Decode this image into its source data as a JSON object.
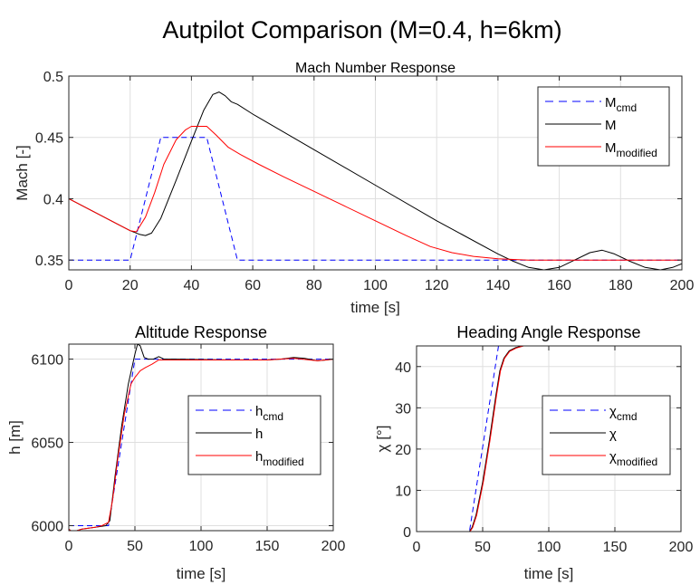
{
  "title": "Autpilot Comparison (M=0.4, h=6km)",
  "chart_data": [
    {
      "type": "line",
      "title": "Mach Number Response",
      "xlabel": "time [s]",
      "ylabel": "Mach [-]",
      "xlim": [
        0,
        200
      ],
      "ylim": [
        0.342,
        0.5
      ],
      "xticks": [
        0,
        20,
        40,
        60,
        80,
        100,
        120,
        140,
        160,
        180,
        200
      ],
      "yticks": [
        0.35,
        0.4,
        0.45,
        0.5
      ],
      "grid": true,
      "legend": "top-right",
      "series": [
        {
          "name": "M",
          "sub": "cmd",
          "color": "#0000ff",
          "dash": true,
          "x": [
            0,
            20,
            30,
            45,
            55,
            200
          ],
          "y": [
            0.35,
            0.35,
            0.45,
            0.45,
            0.35,
            0.35
          ]
        },
        {
          "name": "M",
          "sub": "",
          "color": "#000000",
          "dash": false,
          "x": [
            0,
            10,
            20,
            23,
            25,
            27,
            30,
            35,
            40,
            44,
            47,
            49,
            51,
            53,
            55,
            60,
            80,
            100,
            120,
            140,
            145,
            150,
            155,
            160,
            165,
            170,
            174,
            178,
            183,
            188,
            193,
            197,
            200
          ],
          "y": [
            0.4,
            0.387,
            0.374,
            0.371,
            0.37,
            0.372,
            0.384,
            0.415,
            0.447,
            0.472,
            0.485,
            0.487,
            0.484,
            0.479,
            0.477,
            0.469,
            0.44,
            0.411,
            0.382,
            0.355,
            0.349,
            0.344,
            0.342,
            0.344,
            0.35,
            0.356,
            0.358,
            0.355,
            0.349,
            0.344,
            0.342,
            0.344,
            0.347
          ]
        },
        {
          "name": "M",
          "sub": "modified",
          "color": "#ff0000",
          "dash": false,
          "x": [
            0,
            10,
            20,
            22,
            25,
            28,
            31,
            35,
            38,
            40,
            45,
            48,
            52,
            56,
            62,
            70,
            80,
            90,
            100,
            110,
            118,
            125,
            132,
            140,
            150,
            200
          ],
          "y": [
            0.4,
            0.387,
            0.374,
            0.373,
            0.385,
            0.405,
            0.428,
            0.448,
            0.456,
            0.459,
            0.459,
            0.452,
            0.442,
            0.436,
            0.428,
            0.418,
            0.406,
            0.394,
            0.382,
            0.37,
            0.361,
            0.356,
            0.353,
            0.351,
            0.35,
            0.35
          ]
        }
      ]
    },
    {
      "type": "line",
      "title": "Altitude Response",
      "xlabel": "time [s]",
      "ylabel": "h [m]",
      "xlim": [
        0,
        200
      ],
      "ylim": [
        5997,
        6109
      ],
      "xticks": [
        0,
        50,
        100,
        150,
        200
      ],
      "yticks": [
        6000,
        6050,
        6100
      ],
      "grid": true,
      "legend": "right",
      "series": [
        {
          "name": "h",
          "sub": "cmd",
          "color": "#0000ff",
          "dash": true,
          "x": [
            0,
            30,
            50,
            200
          ],
          "y": [
            6000,
            6000,
            6100,
            6100
          ]
        },
        {
          "name": "h",
          "sub": "",
          "color": "#000000",
          "dash": false,
          "x": [
            0,
            3,
            6,
            10,
            20,
            28,
            31,
            35,
            40,
            45,
            50,
            52,
            54,
            57,
            60,
            64,
            68,
            72,
            80,
            120,
            150,
            160,
            170,
            178,
            188,
            195,
            200
          ],
          "y": [
            5998,
            5996,
            5997,
            5998,
            5999,
            6000,
            6003,
            6030,
            6060,
            6085,
            6103,
            6109,
            6108,
            6101,
            6100,
            6100,
            6101.5,
            6100,
            6100,
            6099.5,
            6099.5,
            6100,
            6101,
            6100.5,
            6099,
            6099.5,
            6100
          ]
        },
        {
          "name": "h",
          "sub": "modified",
          "color": "#ff0000",
          "dash": false,
          "x": [
            0,
            3,
            6,
            10,
            20,
            25,
            30,
            33,
            37,
            42,
            47,
            50,
            54,
            58,
            63,
            68,
            72,
            80,
            120,
            150,
            170,
            188,
            200
          ],
          "y": [
            5998,
            5996,
            5997,
            5998,
            5999,
            6000,
            6002,
            6015,
            6040,
            6067,
            6085,
            6089,
            6093,
            6095,
            6097,
            6099.5,
            6099.5,
            6099.5,
            6099.5,
            6099.5,
            6100.5,
            6099,
            6100
          ]
        }
      ]
    },
    {
      "type": "line",
      "title": "Heading Angle Response",
      "xlabel": "time [s]",
      "ylabel": "χ [°]",
      "xlim": [
        0,
        200
      ],
      "ylim": [
        0,
        45
      ],
      "xticks": [
        0,
        50,
        100,
        150,
        200
      ],
      "yticks": [
        0,
        10,
        20,
        30,
        40
      ],
      "grid": true,
      "legend": "right",
      "series": [
        {
          "name": "χ",
          "sub": "cmd",
          "color": "#0000ff",
          "dash": true,
          "x": [
            0,
            40,
            62,
            200
          ],
          "y": [
            0,
            0,
            45,
            45
          ]
        },
        {
          "name": "χ",
          "sub": "",
          "color": "#000000",
          "dash": false,
          "x": [
            0,
            40,
            42,
            45,
            50,
            55,
            60,
            63,
            66,
            70,
            75,
            80,
            90,
            200
          ],
          "y": [
            0,
            0,
            1,
            4,
            12,
            22,
            33,
            39,
            42,
            43.8,
            44.6,
            45,
            45,
            45
          ]
        },
        {
          "name": "χ",
          "sub": "modified",
          "color": "#ff0000",
          "dash": false,
          "x": [
            0,
            40.5,
            42.5,
            45.5,
            50.5,
            55.5,
            60.5,
            63.5,
            66.5,
            70.5,
            75.5,
            81,
            90,
            200
          ],
          "y": [
            0,
            0,
            1,
            4,
            12,
            22,
            33,
            39,
            42,
            43.7,
            44.5,
            45,
            45,
            45
          ]
        }
      ]
    }
  ]
}
